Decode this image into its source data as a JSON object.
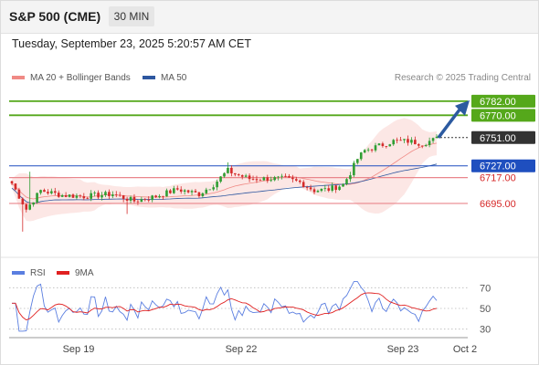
{
  "header": {
    "symbol": "S&P 500 (CME)",
    "timeframe": "30 MIN"
  },
  "datetime": "Tuesday, September 23, 2025 5:20:57 AM CET",
  "legend": {
    "ma20_label": "MA 20 + Bollinger Bands",
    "ma20_color": "#f08a85",
    "ma50_label": "MA 50",
    "ma50_color": "#2e57a0"
  },
  "copyright": "Research © 2025 Trading Central",
  "colors": {
    "up_candle": "#2f9e33",
    "down_candle": "#d42a2a",
    "target_line": "#55a81b",
    "support_line": "#1f4fbf",
    "resistance_line": "#e9868c",
    "current_price": "#333333",
    "rsi": "#5a7ee0",
    "rsi_ma": "#e02020",
    "arrow": "#2c5aa0"
  },
  "chart_data": [
    {
      "type": "candlestick",
      "x_axis_labels": [
        "Sep 19",
        "Sep 22",
        "Sep 23",
        "Oct 2"
      ],
      "ylim": [
        6660,
        6792
      ],
      "levels": [
        {
          "value": 6782.0,
          "label": "6782.00",
          "kind": "target"
        },
        {
          "value": 6770.0,
          "label": "6770.00",
          "kind": "target"
        },
        {
          "value": 6751.0,
          "label": "6751.00",
          "kind": "current"
        },
        {
          "value": 6727.0,
          "label": "6727.00",
          "kind": "support"
        },
        {
          "value": 6717.0,
          "label": "6717.00",
          "kind": "pivot"
        },
        {
          "value": 6695.0,
          "label": "6695.00",
          "kind": "pivot"
        }
      ],
      "forecast_arrow": {
        "from": 6751,
        "to": 6782
      },
      "series": [
        {
          "name": "MA 20 + Bollinger Bands"
        },
        {
          "name": "MA 50"
        }
      ]
    },
    {
      "type": "line",
      "series": [
        {
          "name": "RSI"
        },
        {
          "name": "9MA"
        }
      ],
      "y_ticks": [
        "70",
        "50",
        "30"
      ],
      "ylim": [
        20,
        80
      ]
    }
  ]
}
